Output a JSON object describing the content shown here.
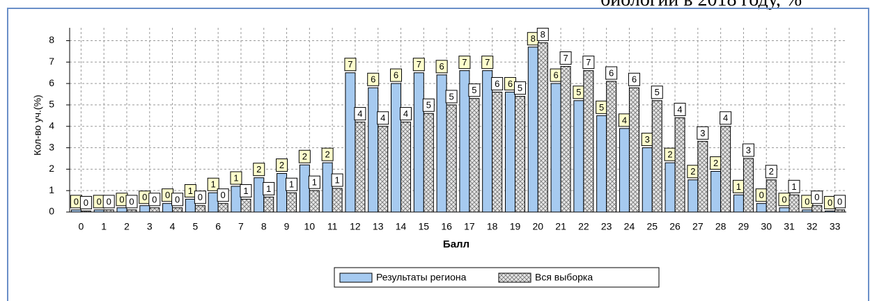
{
  "heading": "биологии в 2018 году, %",
  "chart_data": {
    "type": "bar",
    "y_label": "Кол-во уч.(%)",
    "x_label": "Балл",
    "categories": [
      "0",
      "1",
      "2",
      "3",
      "4",
      "5",
      "6",
      "7",
      "8",
      "9",
      "10",
      "11",
      "12",
      "13",
      "14",
      "15",
      "16",
      "17",
      "18",
      "19",
      "20",
      "21",
      "22",
      "23",
      "24",
      "25",
      "26",
      "27",
      "28",
      "29",
      "30",
      "31",
      "32",
      "33"
    ],
    "series": [
      {
        "name": "Результаты региона",
        "color": "#a6caf0",
        "values": [
          0.1,
          0.1,
          0.2,
          0.3,
          0.4,
          0.6,
          0.9,
          1.2,
          1.6,
          1.8,
          2.2,
          2.3,
          6.5,
          5.8,
          6.0,
          6.5,
          6.4,
          6.6,
          6.6,
          5.6,
          7.7,
          6.0,
          5.2,
          4.5,
          3.9,
          3.0,
          2.3,
          1.5,
          1.9,
          0.8,
          0.4,
          0.2,
          0.1,
          0.05
        ],
        "value_labels": [
          "0",
          "0",
          "0",
          "0",
          "0",
          "1",
          "1",
          "1",
          "2",
          "2",
          "2",
          "2",
          "7",
          "6",
          "6",
          "7",
          "6",
          "7",
          "7",
          "6",
          "8",
          "6",
          "5",
          "5",
          "4",
          "3",
          "2",
          "2",
          "2",
          "1",
          "0",
          "0",
          "0",
          "0"
        ]
      },
      {
        "name": "Вся выборка",
        "color": "#d9d9d9",
        "values": [
          0.05,
          0.1,
          0.1,
          0.2,
          0.2,
          0.3,
          0.4,
          0.6,
          0.7,
          0.9,
          1.0,
          1.1,
          4.2,
          4.0,
          4.2,
          4.6,
          5.0,
          5.3,
          5.6,
          5.4,
          7.9,
          6.8,
          6.6,
          6.1,
          5.8,
          5.2,
          4.4,
          3.3,
          4.0,
          2.5,
          1.5,
          0.8,
          0.3,
          0.1
        ],
        "value_labels": [
          "0",
          "0",
          "0",
          "0",
          "0",
          "0",
          "0",
          "1",
          "1",
          "1",
          "1",
          "1",
          "4",
          "4",
          "4",
          "5",
          "5",
          "5",
          "6",
          "5",
          "8",
          "7",
          "7",
          "6",
          "6",
          "5",
          "4",
          "3",
          "4",
          "3",
          "2",
          "1",
          "0",
          "0"
        ]
      }
    ],
    "ylim": [
      0,
      8.6
    ],
    "yticks": [
      0,
      1,
      2,
      3,
      4,
      5,
      6,
      7,
      8
    ],
    "grid": true,
    "legend": "bottom"
  }
}
